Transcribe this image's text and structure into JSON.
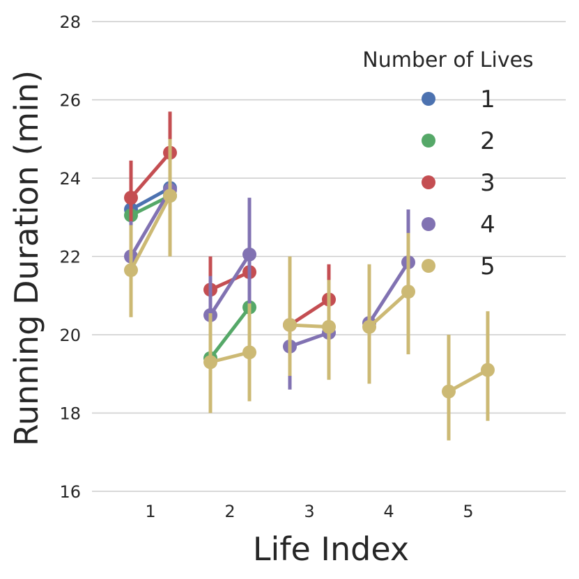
{
  "chart_data": {
    "type": "line",
    "xlabel": "Life Index",
    "ylabel": "Running Duration (min)",
    "ylim": [
      16,
      28
    ],
    "yticks": [
      16,
      18,
      20,
      22,
      24,
      26,
      28
    ],
    "categories": [
      "1",
      "2",
      "3",
      "4",
      "5"
    ],
    "grid": "horizontal",
    "legend_title": "Number of Lives",
    "legend_placement": "top-right",
    "series": [
      {
        "name": "1",
        "color": "#4c72b0",
        "points": [
          {
            "x": 1,
            "y": 23.2,
            "lo": 22.3,
            "hi": 24.2
          },
          {
            "x": 1,
            "y": 23.75,
            "lo": 22.8,
            "hi": 24.6
          }
        ]
      },
      {
        "name": "2",
        "color": "#55a868",
        "points": [
          {
            "x": 1,
            "y": 23.05,
            "lo": 22.2,
            "hi": 23.9
          },
          {
            "x": 1,
            "y": 23.55,
            "lo": 22.6,
            "hi": 24.4
          },
          {
            "x": 2,
            "y": 19.4,
            "lo": 18.6,
            "hi": 20.2
          },
          {
            "x": 2,
            "y": 20.7,
            "lo": 19.8,
            "hi": 21.6
          }
        ]
      },
      {
        "name": "3",
        "color": "#c44e52",
        "points": [
          {
            "x": 1,
            "y": 23.5,
            "lo": 22.55,
            "hi": 24.45
          },
          {
            "x": 1,
            "y": 24.65,
            "lo": 23.6,
            "hi": 25.7
          },
          {
            "x": 2,
            "y": 21.15,
            "lo": 20.3,
            "hi": 22.0
          },
          {
            "x": 2,
            "y": 21.6,
            "lo": 20.6,
            "hi": 22.6
          },
          {
            "x": 3,
            "y": 20.25,
            "lo": 19.35,
            "hi": 21.1
          },
          {
            "x": 3,
            "y": 20.9,
            "lo": 20.0,
            "hi": 21.8
          }
        ]
      },
      {
        "name": "4",
        "color": "#8172b2",
        "points": [
          {
            "x": 1,
            "y": 22.0,
            "lo": 21.1,
            "hi": 22.9
          },
          {
            "x": 1,
            "y": 23.7,
            "lo": 22.3,
            "hi": 24.7
          },
          {
            "x": 2,
            "y": 20.5,
            "lo": 19.6,
            "hi": 21.5
          },
          {
            "x": 2,
            "y": 22.05,
            "lo": 20.7,
            "hi": 23.5
          },
          {
            "x": 3,
            "y": 19.7,
            "lo": 18.6,
            "hi": 20.8
          },
          {
            "x": 3,
            "y": 20.05,
            "lo": 18.95,
            "hi": 21.2
          },
          {
            "x": 4,
            "y": 20.3,
            "lo": 19.0,
            "hi": 21.6
          },
          {
            "x": 4,
            "y": 21.85,
            "lo": 20.5,
            "hi": 23.2
          }
        ]
      },
      {
        "name": "5",
        "color": "#ccb974",
        "points": [
          {
            "x": 1,
            "y": 21.65,
            "lo": 20.45,
            "hi": 22.8
          },
          {
            "x": 1,
            "y": 23.55,
            "lo": 22.0,
            "hi": 25.0
          },
          {
            "x": 2,
            "y": 19.3,
            "lo": 18.0,
            "hi": 20.55
          },
          {
            "x": 2,
            "y": 19.55,
            "lo": 18.3,
            "hi": 20.8
          },
          {
            "x": 3,
            "y": 20.25,
            "lo": 18.95,
            "hi": 22.0
          },
          {
            "x": 3,
            "y": 20.2,
            "lo": 18.85,
            "hi": 21.4
          },
          {
            "x": 4,
            "y": 20.2,
            "lo": 18.75,
            "hi": 21.8
          },
          {
            "x": 4,
            "y": 21.1,
            "lo": 19.5,
            "hi": 22.6
          },
          {
            "x": 5,
            "y": 18.55,
            "lo": 17.3,
            "hi": 20.0
          },
          {
            "x": 5,
            "y": 19.1,
            "lo": 17.8,
            "hi": 20.6
          }
        ]
      }
    ]
  }
}
